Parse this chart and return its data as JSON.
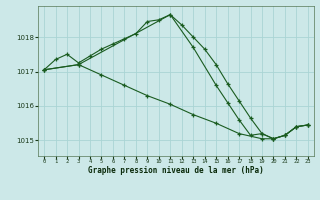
{
  "title": "Graphe pression niveau de la mer (hPa)",
  "bg_color": "#cce8e8",
  "grid_color": "#aad4d4",
  "line_color": "#1a5c20",
  "ylim": [
    1014.55,
    1018.9
  ],
  "yticks": [
    1015,
    1016,
    1017,
    1018
  ],
  "xlim": [
    -0.5,
    23.5
  ],
  "xticks": [
    0,
    1,
    2,
    3,
    4,
    5,
    6,
    7,
    8,
    9,
    10,
    11,
    12,
    13,
    14,
    15,
    16,
    17,
    18,
    19,
    20,
    21,
    22,
    23
  ],
  "series1_x": [
    0,
    1,
    2,
    3,
    4,
    5,
    6,
    7,
    8,
    9,
    10,
    11,
    12,
    13,
    14,
    15,
    16,
    17,
    18,
    19,
    20,
    21,
    22,
    23
  ],
  "series1_y": [
    1017.05,
    1017.35,
    1017.5,
    1017.25,
    1017.45,
    1017.65,
    1017.8,
    1017.95,
    1018.1,
    1018.45,
    1018.5,
    1018.65,
    1018.35,
    1018.0,
    1017.65,
    1017.2,
    1016.65,
    1016.15,
    1015.65,
    1015.2,
    1015.05,
    1015.15,
    1015.4,
    1015.45
  ],
  "series2_x": [
    0,
    3,
    5,
    7,
    9,
    11,
    13,
    15,
    17,
    19,
    20,
    21,
    22,
    23
  ],
  "series2_y": [
    1017.05,
    1017.2,
    1016.9,
    1016.6,
    1016.3,
    1016.05,
    1015.75,
    1015.5,
    1015.2,
    1015.05,
    1015.05,
    1015.15,
    1015.4,
    1015.45
  ],
  "series3_x": [
    0,
    3,
    11,
    13,
    15,
    16,
    17,
    18,
    19,
    20,
    21,
    22,
    23
  ],
  "series3_y": [
    1017.05,
    1017.2,
    1018.65,
    1017.7,
    1016.6,
    1016.1,
    1015.6,
    1015.15,
    1015.2,
    1015.05,
    1015.15,
    1015.4,
    1015.45
  ]
}
